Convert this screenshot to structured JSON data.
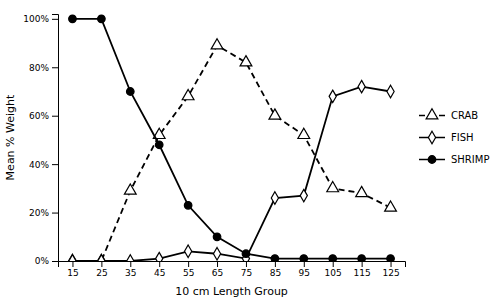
{
  "chart_data": {
    "type": "line",
    "x": [
      15,
      25,
      35,
      45,
      55,
      65,
      75,
      85,
      95,
      105,
      115,
      125
    ],
    "xlabel": "10 cm Length Group",
    "ylabel": "Mean % Weight",
    "xlim": [
      10,
      130
    ],
    "xticks": [
      15,
      25,
      35,
      45,
      55,
      65,
      75,
      85,
      95,
      105,
      115,
      125
    ],
    "ylim": [
      0,
      102
    ],
    "yticks": [
      {
        "value": 0,
        "label": "0%"
      },
      {
        "value": 20,
        "label": "20%"
      },
      {
        "value": 40,
        "label": "40%"
      },
      {
        "value": 60,
        "label": "60%"
      },
      {
        "value": 80,
        "label": "80%"
      },
      {
        "value": 100,
        "label": "100%"
      }
    ],
    "grid": false,
    "legend": "right",
    "series": [
      {
        "name": "CRAB",
        "color": "#000000",
        "marker": "triangle-open",
        "line_style": "dashed",
        "values": [
          0,
          0,
          29,
          52,
          68,
          89,
          82,
          60,
          52,
          30,
          28,
          22
        ]
      },
      {
        "name": "FISH",
        "color": "#000000",
        "marker": "diamond-open",
        "line_style": "solid",
        "values": [
          0,
          0,
          0,
          1,
          4,
          3,
          1,
          26,
          27,
          68,
          72,
          70
        ]
      },
      {
        "name": "SHRIMP",
        "color": "#000000",
        "marker": "circle",
        "line_style": "solid",
        "values": [
          100,
          100,
          70,
          48,
          23,
          10,
          3,
          1,
          1,
          1,
          1,
          1
        ]
      }
    ]
  }
}
